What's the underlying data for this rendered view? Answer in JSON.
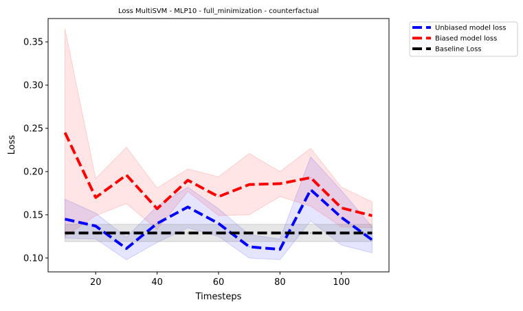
{
  "chart_data": {
    "type": "line",
    "title": "Loss MultiSVM - MLP10 - full_minimization - counterfactual",
    "xlabel": "Timesteps",
    "ylabel": "Loss",
    "xlim": [
      4.5,
      115.5
    ],
    "ylim": [
      0.084,
      0.377
    ],
    "xticks": [
      20,
      40,
      60,
      80,
      100
    ],
    "yticks": [
      0.1,
      0.15,
      0.2,
      0.25,
      0.3,
      0.35
    ],
    "ytick_labels": [
      "0.10",
      "0.15",
      "0.20",
      "0.25",
      "0.30",
      "0.35"
    ],
    "grid": false,
    "legend_placement": "outside-top-right",
    "x": [
      10,
      20,
      30,
      40,
      50,
      60,
      70,
      80,
      90,
      100,
      110
    ],
    "series": [
      {
        "name": "Unbiased model loss",
        "color": "#0000ff",
        "band_color": "#0000ff",
        "style": "dashed",
        "values": [
          0.145,
          0.137,
          0.111,
          0.14,
          0.159,
          0.14,
          0.113,
          0.11,
          0.179,
          0.147,
          0.121
        ],
        "lower": [
          0.123,
          0.122,
          0.098,
          0.118,
          0.135,
          0.125,
          0.1,
          0.098,
          0.143,
          0.115,
          0.106
        ],
        "upper": [
          0.168,
          0.152,
          0.124,
          0.16,
          0.182,
          0.157,
          0.127,
          0.122,
          0.217,
          0.178,
          0.136
        ]
      },
      {
        "name": "Biased model loss",
        "color": "#ff0000",
        "band_color": "#ff0000",
        "style": "dashed",
        "values": [
          0.245,
          0.17,
          0.196,
          0.157,
          0.19,
          0.171,
          0.185,
          0.186,
          0.193,
          0.158,
          0.149
        ],
        "lower": [
          0.125,
          0.149,
          0.163,
          0.133,
          0.177,
          0.149,
          0.15,
          0.171,
          0.16,
          0.136,
          0.135
        ],
        "upper": [
          0.365,
          0.192,
          0.228,
          0.181,
          0.203,
          0.194,
          0.221,
          0.2,
          0.227,
          0.182,
          0.165
        ]
      },
      {
        "name": "Baseline Loss",
        "color": "#000000",
        "band_color": "#808080",
        "style": "dashed",
        "values": [
          0.129,
          0.129,
          0.129,
          0.129,
          0.129,
          0.129,
          0.129,
          0.129,
          0.129,
          0.129,
          0.129
        ],
        "lower": [
          0.119,
          0.119,
          0.119,
          0.119,
          0.119,
          0.119,
          0.119,
          0.119,
          0.119,
          0.119,
          0.119
        ],
        "upper": [
          0.139,
          0.139,
          0.139,
          0.139,
          0.139,
          0.139,
          0.139,
          0.139,
          0.139,
          0.139,
          0.139
        ]
      }
    ]
  }
}
